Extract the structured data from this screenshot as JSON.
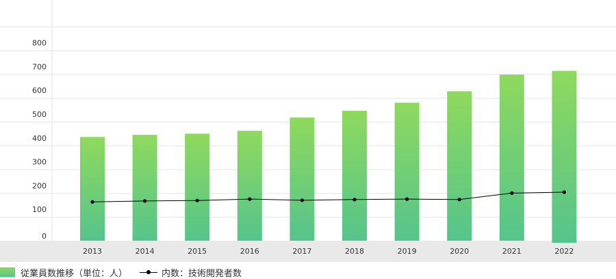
{
  "chart_data": {
    "type": "bar",
    "categories": [
      "2013",
      "2014",
      "2015",
      "2016",
      "2017",
      "2018",
      "2019",
      "2020",
      "2021",
      "2022"
    ],
    "series": [
      {
        "name": "従業員数推移（単位：人）",
        "type": "bar",
        "values": [
          436,
          445,
          450,
          462,
          518,
          546,
          580,
          628,
          698,
          714
        ]
      },
      {
        "name": "内数：技術開発者数",
        "type": "line",
        "values": [
          163,
          167,
          169,
          175,
          170,
          173,
          175,
          173,
          200,
          204
        ]
      }
    ],
    "yticks": [
      0,
      100,
      200,
      300,
      400,
      500,
      600,
      700,
      800
    ],
    "ylim": [
      0,
      1000
    ],
    "grid": true,
    "legend": "bottom-left",
    "colors": {
      "bar_top": "#8fd95e",
      "bar_bottom": "#55c48c",
      "line": "#000000",
      "grid": "#e3e3e3",
      "axis_band": "#e9e9e9"
    }
  }
}
